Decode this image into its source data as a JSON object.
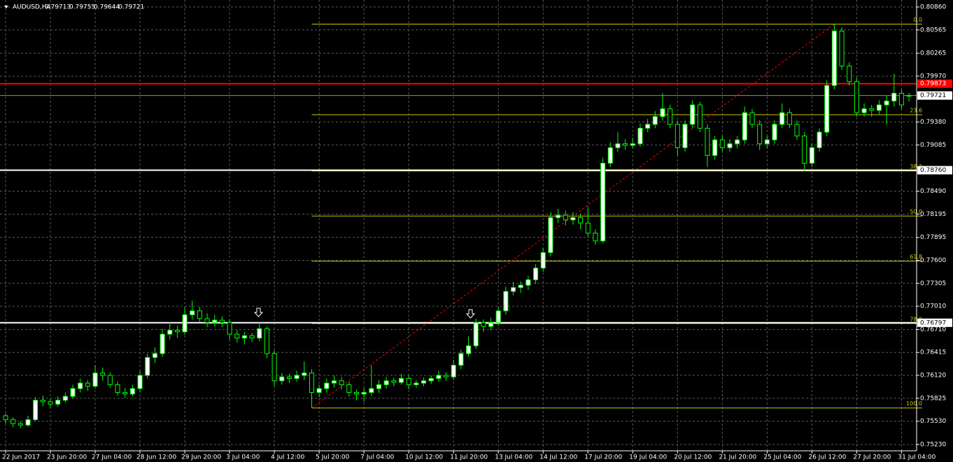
{
  "chart_data": {
    "type": "candlestick",
    "title": "AUDUSD,H4",
    "ylim": [
      0.7523,
      0.8086
    ],
    "yticks": [
      {
        "value": 0.8086,
        "label": "0.80860"
      },
      0.80565,
      0.80265,
      {
        "value": 0.7997,
        "label": "0.79970"
      },
      {
        "value": 0.7938,
        "label": "0.79380"
      },
      0.79085,
      {
        "value": 0.7849,
        "label": "0.78490"
      },
      0.78195,
      0.77895,
      {
        "value": 0.776,
        "label": "0.77600"
      },
      0.77305,
      {
        "value": 0.7701,
        "label": "0.77010"
      },
      {
        "value": 0.7671,
        "label": "0.76710"
      },
      0.76415,
      {
        "value": 0.7612,
        "label": "0.76120"
      },
      0.75825,
      {
        "value": 0.7553,
        "label": "0.75530"
      },
      {
        "value": 0.7523,
        "label": "0.75230"
      }
    ],
    "grid": true,
    "up_fill": "#ffffff",
    "down_fill": "#000000",
    "wick_color": "#00ff00",
    "categories": [
      "22 Jun 2017",
      null,
      null,
      null,
      null,
      null,
      "23 Jun 20:00",
      null,
      null,
      null,
      null,
      null,
      "27 Jun 04:00",
      null,
      null,
      null,
      null,
      null,
      "28 Jun 12:00",
      null,
      null,
      null,
      null,
      null,
      "29 Jun 20:00",
      null,
      null,
      null,
      null,
      null,
      "3 Jul 04:00",
      null,
      null,
      null,
      null,
      null,
      "4 Jul 12:00",
      null,
      null,
      null,
      null,
      null,
      "5 Jul 20:00",
      null,
      null,
      null,
      null,
      null,
      "7 Jul 04:00",
      null,
      null,
      null,
      null,
      null,
      "10 Jul 12:00",
      null,
      null,
      null,
      null,
      null,
      "11 Jul 20:00",
      null,
      null,
      null,
      null,
      null,
      "13 Jul 04:00",
      null,
      null,
      null,
      null,
      null,
      "14 Jul 12:00",
      null,
      null,
      null,
      null,
      null,
      "17 Jul 20:00",
      null,
      null,
      null,
      null,
      null,
      "19 Jul 04:00",
      null,
      null,
      null,
      null,
      null,
      "20 Jul 12:00",
      null,
      null,
      null,
      null,
      null,
      "21 Jul 20:00",
      null,
      null,
      null,
      null,
      null,
      "25 Jul 04:00",
      null,
      null,
      null,
      null,
      null,
      "26 Jul 12:00",
      null,
      null,
      null,
      null,
      null,
      "27 Jul 20:00",
      null,
      null,
      null,
      null,
      null,
      "31 Jul 04:00",
      null
    ],
    "ohlc": [
      [
        0.756,
        0.7563,
        0.755,
        0.7555
      ],
      [
        0.7555,
        0.7558,
        0.7545,
        0.755
      ],
      [
        0.755,
        0.7553,
        0.7544,
        0.7548
      ],
      [
        0.7548,
        0.756,
        0.7546,
        0.7555
      ],
      [
        0.7555,
        0.7584,
        0.7553,
        0.758
      ],
      [
        0.758,
        0.7586,
        0.7572,
        0.7578
      ],
      [
        0.7578,
        0.7582,
        0.757,
        0.7575
      ],
      [
        0.7575,
        0.7585,
        0.7572,
        0.758
      ],
      [
        0.758,
        0.759,
        0.7577,
        0.7585
      ],
      [
        0.7585,
        0.76,
        0.7582,
        0.7595
      ],
      [
        0.7595,
        0.7608,
        0.759,
        0.7602
      ],
      [
        0.7602,
        0.7606,
        0.7592,
        0.7598
      ],
      [
        0.7598,
        0.7625,
        0.7595,
        0.7615
      ],
      [
        0.7615,
        0.7622,
        0.7605,
        0.7612
      ],
      [
        0.7612,
        0.7616,
        0.7596,
        0.76
      ],
      [
        0.76,
        0.7604,
        0.7586,
        0.759
      ],
      [
        0.759,
        0.7596,
        0.7583,
        0.7588
      ],
      [
        0.7588,
        0.76,
        0.7585,
        0.7595
      ],
      [
        0.7595,
        0.7618,
        0.759,
        0.7612
      ],
      [
        0.7612,
        0.764,
        0.7608,
        0.7635
      ],
      [
        0.7635,
        0.7648,
        0.7628,
        0.764
      ],
      [
        0.764,
        0.7672,
        0.7636,
        0.7665
      ],
      [
        0.7665,
        0.768,
        0.7658,
        0.767
      ],
      [
        0.767,
        0.7676,
        0.766,
        0.7668
      ],
      [
        0.7668,
        0.77,
        0.7664,
        0.769
      ],
      [
        0.769,
        0.7708,
        0.7684,
        0.7695
      ],
      [
        0.7695,
        0.77,
        0.768,
        0.7685
      ],
      [
        0.7685,
        0.7692,
        0.7674,
        0.768
      ],
      [
        0.768,
        0.769,
        0.7675,
        0.7683
      ],
      [
        0.7683,
        0.7688,
        0.7674,
        0.768
      ],
      [
        0.768,
        0.7684,
        0.7658,
        0.7665
      ],
      [
        0.7665,
        0.767,
        0.7654,
        0.766
      ],
      [
        0.766,
        0.7668,
        0.7652,
        0.7663
      ],
      [
        0.7663,
        0.7667,
        0.7655,
        0.766
      ],
      [
        0.766,
        0.768,
        0.7656,
        0.7672
      ],
      [
        0.7672,
        0.7675,
        0.7634,
        0.764
      ],
      [
        0.764,
        0.7644,
        0.7598,
        0.7605
      ],
      [
        0.7605,
        0.7615,
        0.76,
        0.761
      ],
      [
        0.761,
        0.7614,
        0.7602,
        0.7608
      ],
      [
        0.7608,
        0.7618,
        0.7604,
        0.7612
      ],
      [
        0.7612,
        0.763,
        0.7606,
        0.7615
      ],
      [
        0.7615,
        0.762,
        0.757,
        0.759
      ],
      [
        0.759,
        0.76,
        0.7584,
        0.7595
      ],
      [
        0.7595,
        0.7608,
        0.759,
        0.7602
      ],
      [
        0.7602,
        0.7612,
        0.7596,
        0.7605
      ],
      [
        0.7605,
        0.761,
        0.7594,
        0.76
      ],
      [
        0.76,
        0.7604,
        0.7585,
        0.759
      ],
      [
        0.759,
        0.7594,
        0.758,
        0.7588
      ],
      [
        0.7588,
        0.7596,
        0.7578,
        0.759
      ],
      [
        0.759,
        0.7625,
        0.7586,
        0.7595
      ],
      [
        0.7595,
        0.7606,
        0.759,
        0.76
      ],
      [
        0.76,
        0.761,
        0.7595,
        0.7605
      ],
      [
        0.7605,
        0.7609,
        0.7598,
        0.7603
      ],
      [
        0.7603,
        0.7614,
        0.76,
        0.7608
      ],
      [
        0.7608,
        0.7612,
        0.7594,
        0.76
      ],
      [
        0.76,
        0.7606,
        0.7596,
        0.7602
      ],
      [
        0.7602,
        0.7609,
        0.7598,
        0.7605
      ],
      [
        0.7605,
        0.7612,
        0.7601,
        0.7608
      ],
      [
        0.7608,
        0.7618,
        0.7604,
        0.7612
      ],
      [
        0.7612,
        0.7616,
        0.7605,
        0.761
      ],
      [
        0.761,
        0.7632,
        0.7606,
        0.7625
      ],
      [
        0.7625,
        0.7645,
        0.762,
        0.764
      ],
      [
        0.764,
        0.7662,
        0.7636,
        0.765
      ],
      [
        0.765,
        0.7685,
        0.7646,
        0.768
      ],
      [
        0.768,
        0.7684,
        0.7668,
        0.7675
      ],
      [
        0.7675,
        0.7686,
        0.767,
        0.768
      ],
      [
        0.768,
        0.77,
        0.7676,
        0.7695
      ],
      [
        0.7695,
        0.7726,
        0.769,
        0.772
      ],
      [
        0.772,
        0.7732,
        0.7715,
        0.7725
      ],
      [
        0.7725,
        0.7733,
        0.7718,
        0.7728
      ],
      [
        0.7728,
        0.774,
        0.7722,
        0.7735
      ],
      [
        0.7735,
        0.7755,
        0.773,
        0.775
      ],
      [
        0.775,
        0.7776,
        0.7745,
        0.777
      ],
      [
        0.777,
        0.7822,
        0.7765,
        0.7815
      ],
      [
        0.7815,
        0.7826,
        0.7808,
        0.7818
      ],
      [
        0.7818,
        0.7824,
        0.7805,
        0.7812
      ],
      [
        0.7812,
        0.7822,
        0.7806,
        0.7815
      ],
      [
        0.7815,
        0.782,
        0.78,
        0.7808
      ],
      [
        0.7808,
        0.7828,
        0.779,
        0.7795
      ],
      [
        0.7795,
        0.78,
        0.778,
        0.7785
      ],
      [
        0.7785,
        0.7892,
        0.7782,
        0.7885
      ],
      [
        0.7885,
        0.7912,
        0.788,
        0.7905
      ],
      [
        0.7905,
        0.7925,
        0.79,
        0.791
      ],
      [
        0.791,
        0.7916,
        0.7902,
        0.7908
      ],
      [
        0.7908,
        0.7918,
        0.7904,
        0.791
      ],
      [
        0.791,
        0.7936,
        0.7906,
        0.793
      ],
      [
        0.793,
        0.7942,
        0.7925,
        0.7935
      ],
      [
        0.7935,
        0.7952,
        0.793,
        0.7945
      ],
      [
        0.7945,
        0.7975,
        0.794,
        0.7955
      ],
      [
        0.7955,
        0.796,
        0.793,
        0.7935
      ],
      [
        0.7935,
        0.794,
        0.7895,
        0.7905
      ],
      [
        0.7905,
        0.794,
        0.79,
        0.7935
      ],
      [
        0.7935,
        0.7966,
        0.793,
        0.796
      ],
      [
        0.796,
        0.7964,
        0.7925,
        0.793
      ],
      [
        0.793,
        0.7935,
        0.788,
        0.7895
      ],
      [
        0.7895,
        0.792,
        0.789,
        0.7915
      ],
      [
        0.7915,
        0.792,
        0.79,
        0.7905
      ],
      [
        0.7905,
        0.7916,
        0.79,
        0.791
      ],
      [
        0.791,
        0.792,
        0.7904,
        0.7915
      ],
      [
        0.7915,
        0.7958,
        0.791,
        0.795
      ],
      [
        0.795,
        0.7955,
        0.793,
        0.7935
      ],
      [
        0.7935,
        0.794,
        0.7902,
        0.791
      ],
      [
        0.791,
        0.792,
        0.7904,
        0.7915
      ],
      [
        0.7915,
        0.794,
        0.791,
        0.7935
      ],
      [
        0.7935,
        0.7962,
        0.793,
        0.795
      ],
      [
        0.795,
        0.7955,
        0.793,
        0.7935
      ],
      [
        0.7935,
        0.794,
        0.7915,
        0.792
      ],
      [
        0.792,
        0.7925,
        0.7875,
        0.7885
      ],
      [
        0.7885,
        0.791,
        0.788,
        0.7905
      ],
      [
        0.7905,
        0.793,
        0.79,
        0.7925
      ],
      [
        0.7925,
        0.7992,
        0.792,
        0.7985
      ],
      [
        0.7985,
        0.8064,
        0.798,
        0.8055
      ],
      [
        0.8055,
        0.806,
        0.8005,
        0.801
      ],
      [
        0.801,
        0.8015,
        0.7985,
        0.799
      ],
      [
        0.799,
        0.7995,
        0.7945,
        0.795
      ],
      [
        0.795,
        0.7962,
        0.7945,
        0.7955
      ],
      [
        0.7955,
        0.796,
        0.7945,
        0.7953
      ],
      [
        0.7953,
        0.7966,
        0.7948,
        0.796
      ],
      [
        0.796,
        0.7972,
        0.7935,
        0.7965
      ],
      [
        0.7965,
        0.8,
        0.7958,
        0.7975
      ],
      [
        0.7975,
        0.798,
        0.7955,
        0.796
      ],
      [
        0.79713,
        0.79755,
        0.79644,
        0.79721
      ]
    ],
    "fib_color": "#c8c800",
    "fib_levels": [
      {
        "value": 0.8064,
        "label": "0.0"
      },
      {
        "value": 0.79474,
        "label": "23.6"
      },
      {
        "value": 0.7875,
        "label": "38.2"
      },
      {
        "value": 0.7817,
        "label": "50.0"
      },
      {
        "value": 0.7759,
        "label": "61.8"
      },
      {
        "value": 0.76787,
        "label": "78.0"
      },
      {
        "value": 0.757,
        "label": "100.0"
      }
    ],
    "trendline_color": "#ff0000",
    "hlines": [
      {
        "value": 0.79873,
        "color": "#ff0000"
      },
      {
        "value": 0.7876,
        "label": "0.78760",
        "color": "#ffffff"
      },
      {
        "value": 0.76797,
        "color": "#ffffff"
      }
    ],
    "bid_color": "#8c8c8c"
  }
}
